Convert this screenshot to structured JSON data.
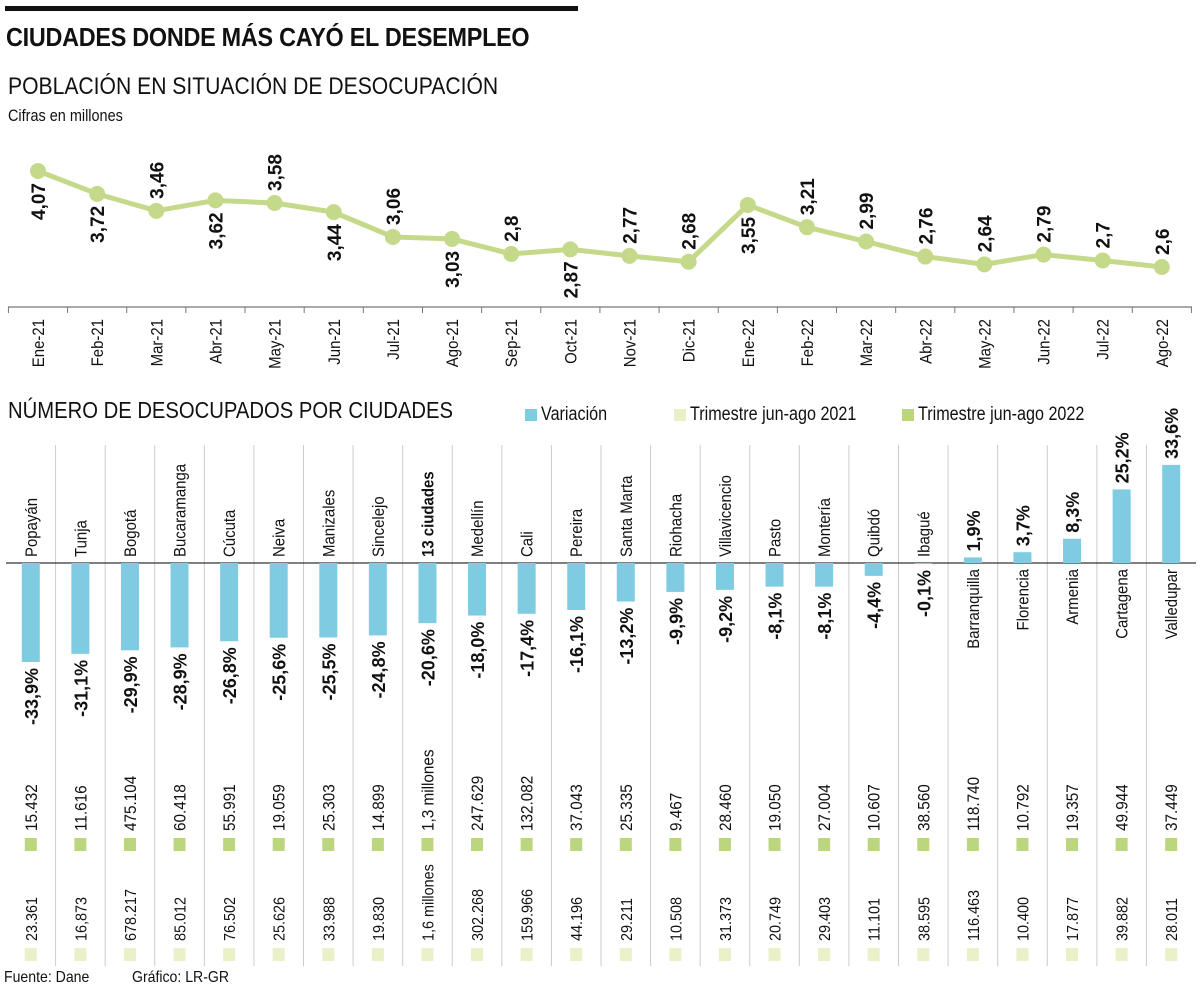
{
  "header": {
    "title": "CIUDADES DONDE MÁS CAYÓ EL DESEMPLEO"
  },
  "colors": {
    "line": "#c5d98a",
    "variation_bar": "#7fcbe2",
    "trim_2021": "#eaf0c8",
    "trim_2022": "#bcd57f",
    "text": "#111111",
    "divider": "#cccccc"
  },
  "footer": {
    "source": "Fuente: Dane",
    "credit": "Gráfico: LR-GR"
  },
  "chart_data": [
    {
      "type": "line",
      "title": "POBLACIÓN EN SITUACIÓN DE DESOCUPACIÓN",
      "subtitle": "Cifras en millones",
      "xlabel": "",
      "ylabel": "",
      "grid": false,
      "categories": [
        "Ene-21",
        "Feb-21",
        "Mar-21",
        "Abr-21",
        "May-21",
        "Jun-21",
        "Jul-21",
        "Ago-21",
        "Sep-21",
        "Oct-21",
        "Nov-21",
        "Dic-21",
        "Ene-22",
        "Feb-22",
        "Mar-22",
        "Abr-22",
        "May-22",
        "Jun-22",
        "Jul-22",
        "Ago-22"
      ],
      "values": [
        4.07,
        3.72,
        3.46,
        3.62,
        3.58,
        3.44,
        3.06,
        3.03,
        2.8,
        2.87,
        2.77,
        2.68,
        3.55,
        3.21,
        2.99,
        2.76,
        2.64,
        2.79,
        2.7,
        2.6
      ],
      "value_labels": [
        "4,07",
        "3,72",
        "3,46",
        "3,62",
        "3,58",
        "3,44",
        "3,06",
        "3,03",
        "2,8",
        "2,87",
        "2,77",
        "2,68",
        "3,55",
        "3,21",
        "2,99",
        "2,76",
        "2,64",
        "2,79",
        "2,7",
        "2,6"
      ],
      "label_position": [
        "below",
        "below",
        "above",
        "below",
        "above",
        "below",
        "above",
        "below",
        "above",
        "below",
        "above",
        "above",
        "below",
        "above",
        "above",
        "above",
        "above",
        "above",
        "above",
        "above"
      ]
    },
    {
      "type": "bar",
      "title": "NÚMERO DE DESOCUPADOS POR CIUDADES",
      "legend": [
        {
          "name": "Variación",
          "color": "#7fcbe2"
        },
        {
          "name": "Trimestre jun-ago 2021",
          "color": "#eaf0c8"
        },
        {
          "name": "Trimestre jun-ago 2022",
          "color": "#bcd57f"
        }
      ],
      "legend_position": "top-right",
      "unit": "%",
      "categories": [
        "Popayán",
        "Tunja",
        "Bogotá",
        "Bucaramanga",
        "Cúcuta",
        "Neiva",
        "Manizales",
        "Sincelejo",
        "13 ciudades",
        "Medellín",
        "Cali",
        "Pereira",
        "Santa Marta",
        "Riohacha",
        "Villavicencio",
        "Pasto",
        "Montería",
        "Quibdó",
        "Ibagué",
        "Barranquilla",
        "Florencia",
        "Armenia",
        "Cartagena",
        "Valledupar"
      ],
      "series": [
        {
          "name": "Variación",
          "values": [
            -33.9,
            -31.1,
            -29.9,
            -28.9,
            -26.8,
            -25.6,
            -25.5,
            -24.8,
            -20.6,
            -18.0,
            -17.4,
            -16.1,
            -13.2,
            -9.9,
            -9.2,
            -8.1,
            -8.1,
            -4.4,
            -0.1,
            1.9,
            3.7,
            8.3,
            25.2,
            33.6
          ],
          "labels": [
            "-33,9%",
            "-31,1%",
            "-29,9%",
            "-28,9%",
            "-26,8%",
            "-25,6%",
            "-25,5%",
            "-24,8%",
            "-20,6%",
            "-18,0%",
            "-17,4%",
            "-16,1%",
            "-13,2%",
            "-9,9%",
            "-9,2%",
            "-8,1%",
            "-8,1%",
            "-4,4%",
            "-0,1%",
            "1,9%",
            "3,7%",
            "8,3%",
            "25,2%",
            "33,6%"
          ]
        },
        {
          "name": "Trimestre jun-ago 2022",
          "labels": [
            "15.432",
            "11.616",
            "475.104",
            "60.418",
            "55.991",
            "19.059",
            "25.303",
            "14.899",
            "1,3 millones",
            "247.629",
            "132.082",
            "37.043",
            "25.335",
            "9.467",
            "28.460",
            "19.050",
            "27.004",
            "10.607",
            "38.560",
            "118.740",
            "10.792",
            "19.357",
            "49.944",
            "37.449"
          ]
        },
        {
          "name": "Trimestre jun-ago 2021",
          "labels": [
            "23.361",
            "16,873",
            "678.217",
            "85.012",
            "76.502",
            "25.626",
            "33.988",
            "19.830",
            "1,6 millones",
            "302.268",
            "159.966",
            "44.196",
            "29.211",
            "10.508",
            "31.373",
            "20.749",
            "29.403",
            "11.101",
            "38.595",
            "116.463",
            "10.400",
            "17.877",
            "39.882",
            "28.011"
          ]
        }
      ]
    }
  ]
}
